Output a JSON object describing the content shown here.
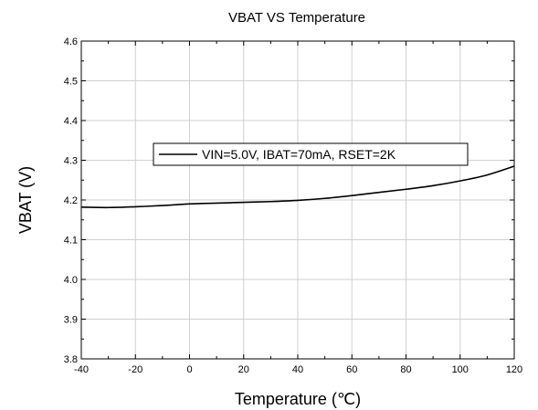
{
  "chart_data": {
    "type": "line",
    "title": "VBAT VS Temperature",
    "xlabel": "Temperature (℃)",
    "ylabel": "VBAT (V)",
    "xlim": [
      -40,
      120
    ],
    "ylim": [
      3.8,
      4.6
    ],
    "xticks": [
      "-40",
      "-20",
      "0",
      "20",
      "40",
      "60",
      "80",
      "100",
      "120"
    ],
    "yticks": [
      "3.8",
      "3.9",
      "4.0",
      "4.1",
      "4.2",
      "4.3",
      "4.4",
      "4.5",
      "4.6"
    ],
    "grid": true,
    "legend": "upper-center",
    "series": [
      {
        "name": "VIN=5.0V, IBAT=70mA, RSET=2K",
        "color": "#000000",
        "x": [
          -40,
          -30,
          -20,
          -10,
          0,
          10,
          20,
          30,
          40,
          50,
          60,
          70,
          80,
          90,
          100,
          110,
          120
        ],
        "y": [
          4.182,
          4.181,
          4.183,
          4.186,
          4.19,
          4.192,
          4.194,
          4.196,
          4.199,
          4.204,
          4.211,
          4.219,
          4.227,
          4.236,
          4.248,
          4.263,
          4.285
        ]
      }
    ]
  }
}
